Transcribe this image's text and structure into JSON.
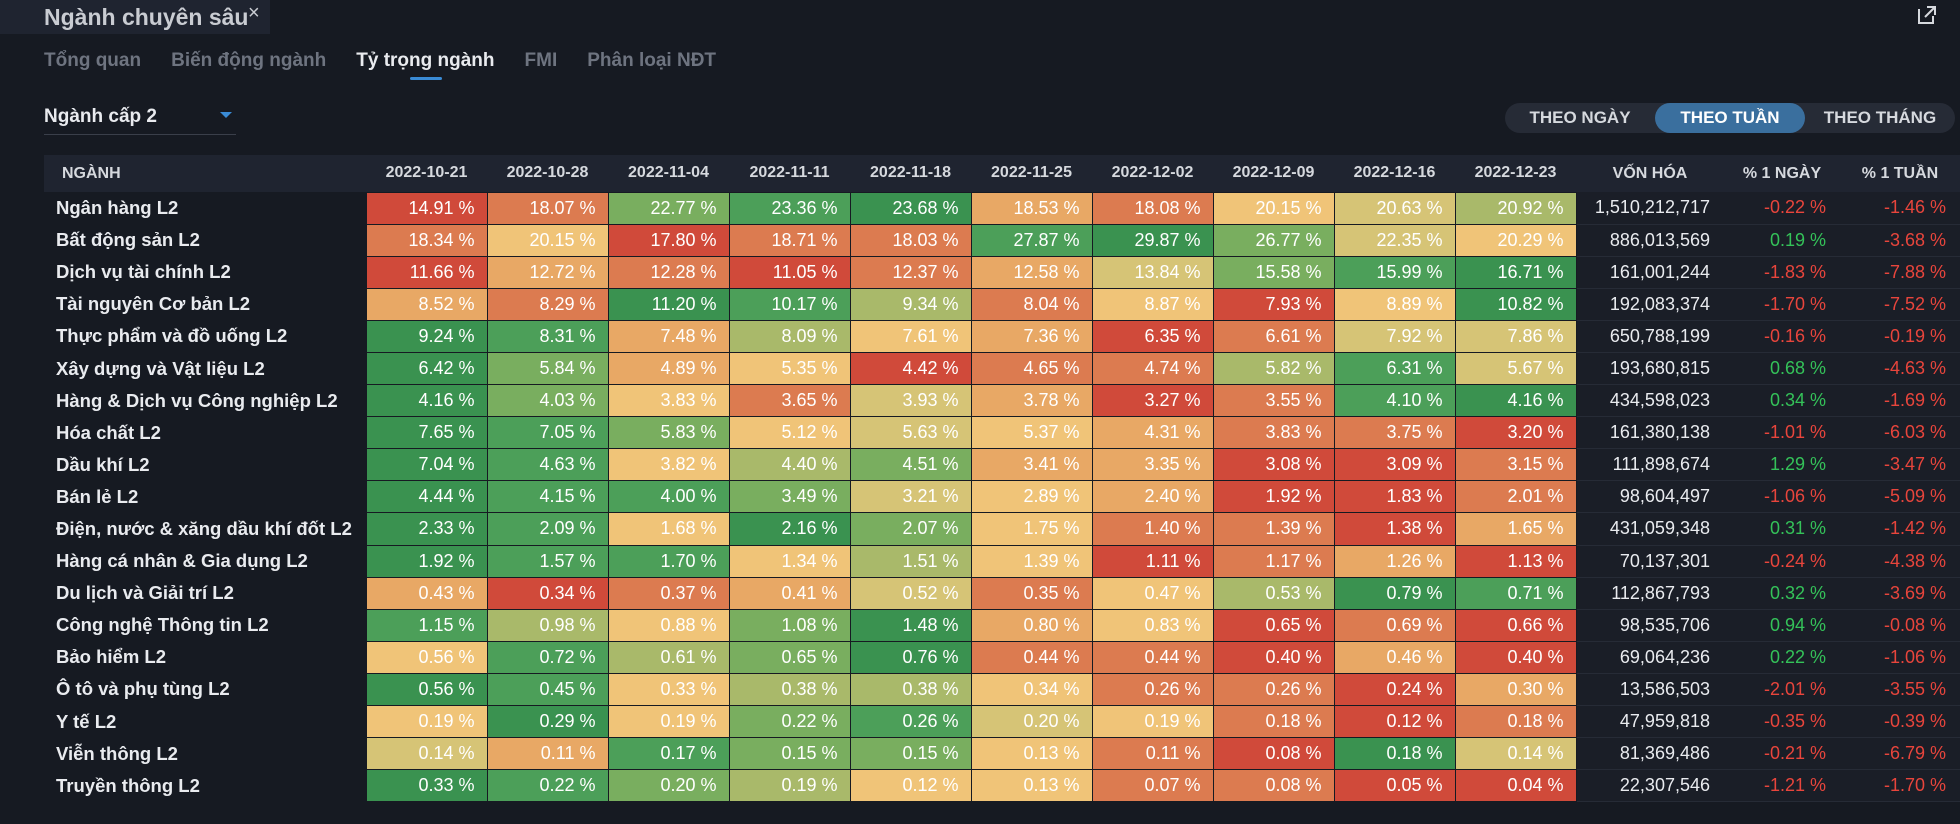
{
  "window": {
    "title": "Ngành chuyên sâu",
    "close_icon": "×"
  },
  "tabs": [
    "Tổng quan",
    "Biến động ngành",
    "Tỷ trọng ngành",
    "FMI",
    "Phân loại NĐT"
  ],
  "active_tab": 2,
  "dropdown": {
    "label": "Ngành cấp 2"
  },
  "period": {
    "options": [
      "THEO NGÀY",
      "THEO TUẦN",
      "THEO THÁNG"
    ],
    "active": 1
  },
  "table": {
    "name_header": "NGÀNH",
    "dates": [
      "2022-10-21",
      "2022-10-28",
      "2022-11-04",
      "2022-11-11",
      "2022-11-18",
      "2022-11-25",
      "2022-12-02",
      "2022-12-09",
      "2022-12-16",
      "2022-12-23"
    ],
    "cap_header": "VỐN HÓA",
    "day_header": "% 1 NGÀY",
    "week_header": "% 1 TUẦN",
    "rows": [
      {
        "name": "Ngân hàng L2",
        "values": [
          "14.91 %",
          "18.07 %",
          "22.77 %",
          "23.36 %",
          "23.68 %",
          "18.53 %",
          "18.08 %",
          "20.15 %",
          "20.63 %",
          "20.92 %"
        ],
        "levels": [
          0,
          1,
          6,
          7,
          8,
          2,
          1,
          3,
          4,
          5
        ],
        "cap": "1,510,212,717",
        "day": "-0.22 %",
        "week": "-1.46 %"
      },
      {
        "name": "Bất động sản L2",
        "values": [
          "18.34 %",
          "20.15 %",
          "17.80 %",
          "18.71 %",
          "18.03 %",
          "27.87 %",
          "29.87 %",
          "26.77 %",
          "22.35 %",
          "20.29 %"
        ],
        "levels": [
          1,
          3,
          0,
          1,
          1,
          7,
          8,
          6,
          4,
          3
        ],
        "cap": "886,013,569",
        "day": "0.19 %",
        "week": "-3.68 %"
      },
      {
        "name": "Dịch vụ tài chính L2",
        "values": [
          "11.66 %",
          "12.72 %",
          "12.28 %",
          "11.05 %",
          "12.37 %",
          "12.58 %",
          "13.84 %",
          "15.58 %",
          "15.99 %",
          "16.71 %"
        ],
        "levels": [
          0,
          2,
          1,
          0,
          1,
          2,
          4,
          6,
          7,
          8
        ],
        "cap": "161,001,244",
        "day": "-1.83 %",
        "week": "-7.88 %"
      },
      {
        "name": "Tài nguyên Cơ bản L2",
        "values": [
          "8.52 %",
          "8.29 %",
          "11.20 %",
          "10.17 %",
          "9.34 %",
          "8.04 %",
          "8.87 %",
          "7.93 %",
          "8.89 %",
          "10.82 %"
        ],
        "levels": [
          2,
          1,
          8,
          7,
          5,
          1,
          3,
          0,
          3,
          8
        ],
        "cap": "192,083,374",
        "day": "-1.70 %",
        "week": "-7.52 %"
      },
      {
        "name": "Thực phẩm và đồ uống L2",
        "values": [
          "9.24 %",
          "8.31 %",
          "7.48 %",
          "8.09 %",
          "7.61 %",
          "7.36 %",
          "6.35 %",
          "6.61 %",
          "7.92 %",
          "7.86 %"
        ],
        "levels": [
          8,
          7,
          2,
          5,
          3,
          2,
          0,
          1,
          4,
          4
        ],
        "cap": "650,788,199",
        "day": "-0.16 %",
        "week": "-0.19 %"
      },
      {
        "name": "Xây dựng và Vật liệu L2",
        "values": [
          "6.42 %",
          "5.84 %",
          "4.89 %",
          "5.35 %",
          "4.42 %",
          "4.65 %",
          "4.74 %",
          "5.82 %",
          "6.31 %",
          "5.67 %"
        ],
        "levels": [
          8,
          6,
          2,
          3,
          0,
          1,
          1,
          5,
          7,
          4
        ],
        "cap": "193,680,815",
        "day": "0.68 %",
        "week": "-4.63 %"
      },
      {
        "name": "Hàng & Dịch vụ Công nghiệp L2",
        "values": [
          "4.16 %",
          "4.03 %",
          "3.83 %",
          "3.65 %",
          "3.93 %",
          "3.78 %",
          "3.27 %",
          "3.55 %",
          "4.10 %",
          "4.16 %"
        ],
        "levels": [
          8,
          6,
          3,
          1,
          4,
          2,
          0,
          1,
          7,
          8
        ],
        "cap": "434,598,023",
        "day": "0.34 %",
        "week": "-1.69 %"
      },
      {
        "name": "Hóa chất L2",
        "values": [
          "7.65 %",
          "7.05 %",
          "5.83 %",
          "5.12 %",
          "5.63 %",
          "5.37 %",
          "4.31 %",
          "3.83 %",
          "3.75 %",
          "3.20 %"
        ],
        "levels": [
          8,
          7,
          6,
          3,
          4,
          3,
          2,
          1,
          1,
          0
        ],
        "cap": "161,380,138",
        "day": "-1.01 %",
        "week": "-6.03 %"
      },
      {
        "name": "Dầu khí L2",
        "values": [
          "7.04 %",
          "4.63 %",
          "3.82 %",
          "4.40 %",
          "4.51 %",
          "3.41 %",
          "3.35 %",
          "3.08 %",
          "3.09 %",
          "3.15 %"
        ],
        "levels": [
          8,
          7,
          3,
          5,
          6,
          2,
          2,
          0,
          0,
          1
        ],
        "cap": "111,898,674",
        "day": "1.29 %",
        "week": "-3.47 %"
      },
      {
        "name": "Bán lẻ L2",
        "values": [
          "4.44 %",
          "4.15 %",
          "4.00 %",
          "3.49 %",
          "3.21 %",
          "2.89 %",
          "2.40 %",
          "1.92 %",
          "1.83 %",
          "2.01 %"
        ],
        "levels": [
          8,
          7,
          7,
          6,
          4,
          3,
          2,
          0,
          0,
          1
        ],
        "cap": "98,604,497",
        "day": "-1.06 %",
        "week": "-5.09 %"
      },
      {
        "name": "Điện, nước & xăng dầu khí đốt L2",
        "values": [
          "2.33 %",
          "2.09 %",
          "1.68 %",
          "2.16 %",
          "2.07 %",
          "1.75 %",
          "1.40 %",
          "1.39 %",
          "1.38 %",
          "1.65 %"
        ],
        "levels": [
          8,
          7,
          3,
          8,
          6,
          3,
          1,
          1,
          0,
          2
        ],
        "cap": "431,059,348",
        "day": "0.31 %",
        "week": "-1.42 %"
      },
      {
        "name": "Hàng cá nhân & Gia dụng L2",
        "values": [
          "1.92 %",
          "1.57 %",
          "1.70 %",
          "1.34 %",
          "1.51 %",
          "1.39 %",
          "1.11 %",
          "1.17 %",
          "1.26 %",
          "1.13 %"
        ],
        "levels": [
          8,
          7,
          7,
          3,
          5,
          3,
          0,
          1,
          2,
          0
        ],
        "cap": "70,137,301",
        "day": "-0.24 %",
        "week": "-4.38 %"
      },
      {
        "name": "Du lịch và Giải trí L2",
        "values": [
          "0.43 %",
          "0.34 %",
          "0.37 %",
          "0.41 %",
          "0.52 %",
          "0.35 %",
          "0.47 %",
          "0.53 %",
          "0.79 %",
          "0.71 %"
        ],
        "levels": [
          2,
          0,
          1,
          2,
          4,
          1,
          3,
          5,
          8,
          7
        ],
        "cap": "112,867,793",
        "day": "0.32 %",
        "week": "-3.69 %"
      },
      {
        "name": "Công nghệ Thông tin L2",
        "values": [
          "1.15 %",
          "0.98 %",
          "0.88 %",
          "1.08 %",
          "1.48 %",
          "0.80 %",
          "0.83 %",
          "0.65 %",
          "0.69 %",
          "0.66 %"
        ],
        "levels": [
          7,
          5,
          3,
          6,
          8,
          2,
          3,
          0,
          1,
          0
        ],
        "cap": "98,535,706",
        "day": "0.94 %",
        "week": "-0.08 %"
      },
      {
        "name": "Bảo hiểm L2",
        "values": [
          "0.56 %",
          "0.72 %",
          "0.61 %",
          "0.65 %",
          "0.76 %",
          "0.44 %",
          "0.44 %",
          "0.40 %",
          "0.46 %",
          "0.40 %"
        ],
        "levels": [
          3,
          7,
          5,
          6,
          8,
          1,
          1,
          0,
          2,
          0
        ],
        "cap": "69,064,236",
        "day": "0.22 %",
        "week": "-1.06 %"
      },
      {
        "name": "Ô tô và phụ tùng L2",
        "values": [
          "0.56 %",
          "0.45 %",
          "0.33 %",
          "0.38 %",
          "0.38 %",
          "0.34 %",
          "0.26 %",
          "0.26 %",
          "0.24 %",
          "0.30 %"
        ],
        "levels": [
          8,
          7,
          3,
          5,
          5,
          3,
          1,
          1,
          0,
          2
        ],
        "cap": "13,586,503",
        "day": "-2.01 %",
        "week": "-3.55 %"
      },
      {
        "name": "Y tế L2",
        "values": [
          "0.19 %",
          "0.29 %",
          "0.19 %",
          "0.22 %",
          "0.26 %",
          "0.20 %",
          "0.19 %",
          "0.18 %",
          "0.12 %",
          "0.18 %"
        ],
        "levels": [
          3,
          8,
          3,
          6,
          7,
          4,
          3,
          1,
          0,
          1
        ],
        "cap": "47,959,818",
        "day": "-0.35 %",
        "week": "-0.39 %"
      },
      {
        "name": "Viễn thông L2",
        "values": [
          "0.14 %",
          "0.11 %",
          "0.17 %",
          "0.15 %",
          "0.15 %",
          "0.13 %",
          "0.11 %",
          "0.08 %",
          "0.18 %",
          "0.14 %"
        ],
        "levels": [
          4,
          2,
          7,
          6,
          6,
          3,
          1,
          0,
          8,
          4
        ],
        "cap": "81,369,486",
        "day": "-0.21 %",
        "week": "-6.79 %"
      },
      {
        "name": "Truyền thông L2",
        "values": [
          "0.33 %",
          "0.22 %",
          "0.20 %",
          "0.19 %",
          "0.12 %",
          "0.13 %",
          "0.07 %",
          "0.08 %",
          "0.05 %",
          "0.04 %"
        ],
        "levels": [
          8,
          7,
          6,
          5,
          3,
          3,
          1,
          1,
          0,
          0
        ],
        "cap": "22,307,546",
        "day": "-1.21 %",
        "week": "-1.70 %"
      }
    ]
  }
}
